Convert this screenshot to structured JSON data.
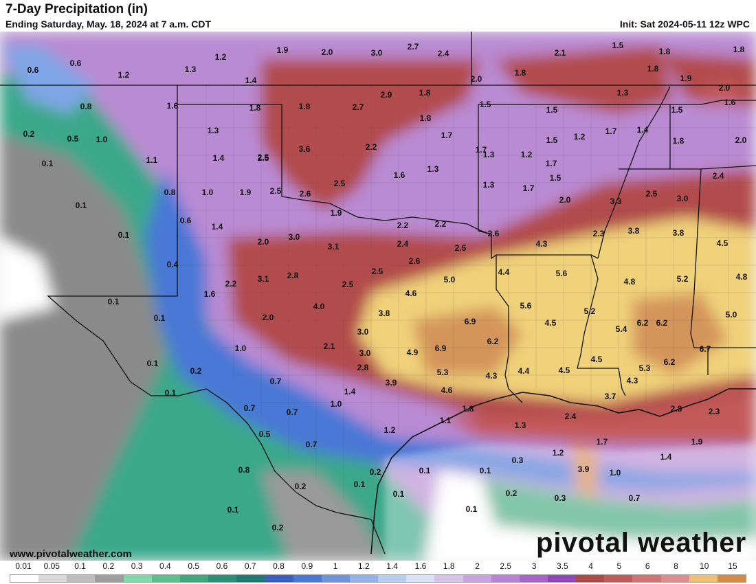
{
  "header": {
    "title": "7-Day Precipitation (in)",
    "subtitle": "Ending Saturday, May. 18, 2024 at 7 a.m. CDT",
    "init": "Init: Sat 2024-05-11 12z WPC"
  },
  "footer": {
    "website": "www.pivotalweather.com",
    "brand": "pivotal weather"
  },
  "legend": {
    "ticks": [
      "0.01",
      "0.05",
      "0.1",
      "0.2",
      "0.3",
      "0.4",
      "0.5",
      "0.6",
      "0.7",
      "0.8",
      "0.9",
      "1",
      "1.2",
      "1.4",
      "1.6",
      "1.8",
      "2",
      "2.5",
      "3",
      "3.5",
      "4",
      "5",
      "6",
      "8",
      "10",
      "15"
    ],
    "colors": [
      "#ffffff",
      "#d9d9d9",
      "#bdbdbd",
      "#9e9e9e",
      "#7fd8a8",
      "#5cc08a",
      "#3fa97e",
      "#2b8f78",
      "#1f7a73",
      "#3a5fc4",
      "#4a78d6",
      "#6e94e0",
      "#93b2ea",
      "#b7cdf3",
      "#d9e3f8",
      "#d7c3ea",
      "#c9a2e0",
      "#b883d6",
      "#a565c9",
      "#9146bb",
      "#b04848",
      "#c25a5a",
      "#d37272",
      "#e08c8c",
      "#f0c070",
      "#d88a40"
    ]
  },
  "map_labels": [
    {
      "v": "0.6"
    },
    {
      "v": "0.6"
    },
    {
      "v": "1.2"
    },
    {
      "v": "1.3"
    },
    {
      "v": "1.2"
    },
    {
      "v": "1.9"
    },
    {
      "v": "2.0"
    },
    {
      "v": "3.0"
    },
    {
      "v": "2.7"
    },
    {
      "v": "2.4"
    },
    {
      "v": "2.1"
    },
    {
      "v": "1.5"
    },
    {
      "v": "1.8"
    },
    {
      "v": "1.8"
    },
    {
      "v": "1.4"
    },
    {
      "v": "0.8"
    },
    {
      "v": "1.6"
    },
    {
      "v": "1.8"
    },
    {
      "v": "1.8"
    },
    {
      "v": "2.7"
    },
    {
      "v": "2.9"
    },
    {
      "v": "1.8"
    },
    {
      "v": "2.0"
    },
    {
      "v": "1.8"
    },
    {
      "v": "1.8"
    },
    {
      "v": "1.9"
    },
    {
      "v": "2.0"
    },
    {
      "v": "1.5"
    },
    {
      "v": "0.2"
    },
    {
      "v": "0.5"
    },
    {
      "v": "1.0"
    },
    {
      "v": "1.3"
    },
    {
      "v": "2.5"
    },
    {
      "v": "1.8"
    },
    {
      "v": "1.5"
    },
    {
      "v": "1.3"
    },
    {
      "v": "1.5"
    },
    {
      "v": "1.5"
    },
    {
      "v": "1.6"
    },
    {
      "v": "0.1"
    },
    {
      "v": "1.1"
    },
    {
      "v": "1.4"
    },
    {
      "v": "2.5"
    },
    {
      "v": "3.6"
    },
    {
      "v": "2.2"
    },
    {
      "v": "1.7"
    },
    {
      "v": "1.7"
    },
    {
      "v": "1.2"
    },
    {
      "v": "1.7"
    },
    {
      "v": "1.4"
    },
    {
      "v": "1.8"
    },
    {
      "v": "2.0"
    },
    {
      "v": "0.1"
    },
    {
      "v": "0.8"
    },
    {
      "v": "1.0"
    },
    {
      "v": "1.9"
    },
    {
      "v": "2.5"
    },
    {
      "v": "2.6"
    },
    {
      "v": "2.5"
    },
    {
      "v": "1.6"
    },
    {
      "v": "1.3"
    },
    {
      "v": "1.3"
    },
    {
      "v": "1.2"
    },
    {
      "v": "1.7"
    },
    {
      "v": "2.4"
    },
    {
      "v": "0.1"
    },
    {
      "v": "0.6"
    },
    {
      "v": "1.4"
    },
    {
      "v": "1.9"
    },
    {
      "v": "2.2"
    },
    {
      "v": "2.2"
    },
    {
      "v": "1.3"
    },
    {
      "v": "1.7"
    },
    {
      "v": "1.5"
    },
    {
      "v": "2.0"
    },
    {
      "v": "3.3"
    },
    {
      "v": "2.5"
    },
    {
      "v": "3.0"
    },
    {
      "v": "2.0"
    },
    {
      "v": "3.0"
    },
    {
      "v": "3.1"
    },
    {
      "v": "2.4"
    },
    {
      "v": "2.6"
    },
    {
      "v": "2.5"
    },
    {
      "v": "4.3"
    },
    {
      "v": "2.3"
    },
    {
      "v": "3.8"
    },
    {
      "v": "3.8"
    },
    {
      "v": "4.5"
    },
    {
      "v": "0.4"
    },
    {
      "v": "2.2"
    },
    {
      "v": "3.1"
    },
    {
      "v": "2.8"
    },
    {
      "v": "2.5"
    },
    {
      "v": "2.5"
    },
    {
      "v": "2.6"
    },
    {
      "v": "5.0"
    },
    {
      "v": "4.4"
    },
    {
      "v": "5.6"
    },
    {
      "v": "4.8"
    },
    {
      "v": "5.2"
    },
    {
      "v": "4.8"
    },
    {
      "v": "0.1"
    },
    {
      "v": "1.6"
    },
    {
      "v": "4.0"
    },
    {
      "v": "4.6"
    },
    {
      "v": "3.8"
    },
    {
      "v": "5.6"
    },
    {
      "v": "5.2"
    },
    {
      "v": "6.2"
    },
    {
      "v": "5.0"
    },
    {
      "v": "0.1"
    },
    {
      "v": "2.0"
    },
    {
      "v": "3.0"
    },
    {
      "v": "6.9"
    },
    {
      "v": "4.5"
    },
    {
      "v": "5.4"
    },
    {
      "v": "6.2"
    },
    {
      "v": "0.1"
    },
    {
      "v": "1.0"
    },
    {
      "v": "2.1"
    },
    {
      "v": "3.0"
    },
    {
      "v": "4.9"
    },
    {
      "v": "6.9"
    },
    {
      "v": "6.2"
    },
    {
      "v": "6.7"
    },
    {
      "v": "0.2"
    },
    {
      "v": "2.8"
    },
    {
      "v": "5.3"
    },
    {
      "v": "4.3"
    },
    {
      "v": "4.4"
    },
    {
      "v": "4.5"
    },
    {
      "v": "4.5"
    },
    {
      "v": "5.3"
    },
    {
      "v": "6.2"
    },
    {
      "v": "0.1"
    },
    {
      "v": "0.7"
    },
    {
      "v": "1.4"
    },
    {
      "v": "3.9"
    },
    {
      "v": "4.6"
    },
    {
      "v": "4.3"
    },
    {
      "v": "3.7"
    },
    {
      "v": "0.7"
    },
    {
      "v": "0.7"
    },
    {
      "v": "1.0"
    },
    {
      "v": "1.8"
    },
    {
      "v": "2.4"
    },
    {
      "v": "2.8"
    },
    {
      "v": "2.3"
    },
    {
      "v": "0.5"
    },
    {
      "v": "1.2"
    },
    {
      "v": "1.1"
    },
    {
      "v": "1.3"
    },
    {
      "v": "0.7"
    },
    {
      "v": "1.2"
    },
    {
      "v": "1.7"
    },
    {
      "v": "1.9"
    },
    {
      "v": "1.4"
    },
    {
      "v": "0.8"
    },
    {
      "v": "0.2"
    },
    {
      "v": "0.1"
    },
    {
      "v": "0.1"
    },
    {
      "v": "0.3"
    },
    {
      "v": "3.9"
    },
    {
      "v": "1.0"
    },
    {
      "v": "0.2"
    },
    {
      "v": "0.1"
    },
    {
      "v": "0.1"
    },
    {
      "v": "0.2"
    },
    {
      "v": "0.3"
    },
    {
      "v": "0.7"
    },
    {
      "v": "0.1"
    },
    {
      "v": "0.1"
    },
    {
      "v": "0.2"
    }
  ]
}
